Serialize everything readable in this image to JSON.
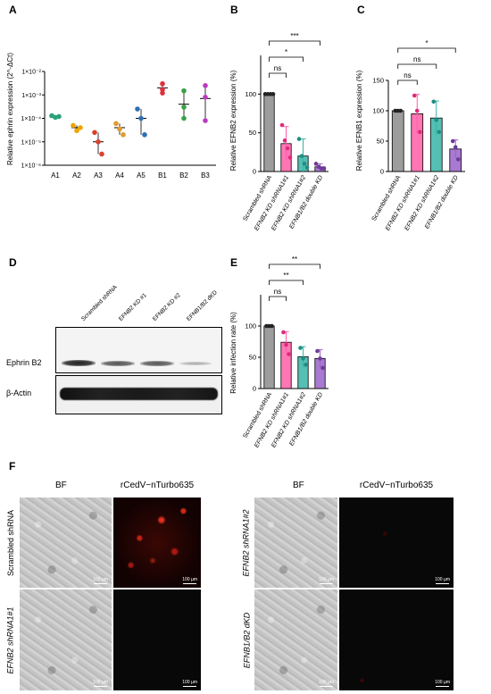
{
  "panels": {
    "A": {
      "letter": "A",
      "ylabel": "Relative ephrin expression (2^-ΔCt)",
      "yticks": [
        "1×10⁻²",
        "1×10⁻³",
        "1×10⁻⁴",
        "1×10⁻⁵",
        "1×10⁻⁶"
      ],
      "xticks": [
        "A1",
        "A2",
        "A3",
        "A4",
        "A5",
        "B1",
        "B2",
        "B3"
      ]
    },
    "B": {
      "letter": "B",
      "ylabel": "Relative EFNB2 expression (%)",
      "yticks": [
        "0",
        "50",
        "100"
      ],
      "categories": [
        "Scrambled shRNA",
        "EFNB2 KD shRNA1#1",
        "EFNB2 KD shRNA1#2",
        "EFNB1/B2 double KD"
      ],
      "sig": [
        "ns",
        "*",
        "***"
      ]
    },
    "C": {
      "letter": "C",
      "ylabel": "Relative EFNB1 expression (%)",
      "yticks": [
        "0",
        "50",
        "100",
        "150"
      ],
      "categories": [
        "Scrambled shRNA",
        "EFNB2 KD shRNA1#1",
        "EFNB2 KD shRNA1#2",
        "EFNB1/B2 double KD"
      ],
      "sig": [
        "ns",
        "ns",
        "*"
      ]
    },
    "D": {
      "letter": "D",
      "lanes": [
        "Scrambled shRNA",
        "EFNB2 KD #1",
        "EFNB2 KD #2",
        "EFNB1/B2 dKD"
      ],
      "row1": "Ephrin B2",
      "row2": "β-Actin"
    },
    "E": {
      "letter": "E",
      "ylabel": "Relative infection rate (%)",
      "yticks": [
        "0",
        "50",
        "100"
      ],
      "categories": [
        "Scrambled shRNA",
        "EFNB2 KD shRNA1#1",
        "EFNB2 KD shRNA1#2",
        "EFNB1/B2 double KD"
      ],
      "sig": [
        "ns",
        "**",
        "**"
      ]
    },
    "F": {
      "letter": "F",
      "col_bf": "BF",
      "col_fl": "rCedV−nTurbo635",
      "rows": [
        "Scrambled shRNA",
        "EFNB2 shRNA1#1",
        "EFNB2 shRNA1#2",
        "EFNB1/B2 dKD"
      ],
      "scale": "100 µm"
    }
  },
  "colors": {
    "grey": "#8c8c8c",
    "pink": "#ff5ea8",
    "teal": "#37b4a6",
    "purple": "#9a63c9",
    "A": [
      "#2aa37a",
      "#f0a400",
      "#d9412b",
      "#e09a2d",
      "#2f6fb4",
      "#e0303a",
      "#3aa04a",
      "#b93bbf"
    ]
  },
  "chart_data": [
    {
      "panel": "A",
      "type": "scatter",
      "ylabel": "Relative ephrin expression (2^-ΔCt)",
      "categories": [
        "A1",
        "A2",
        "A3",
        "A4",
        "A5",
        "B1",
        "B2",
        "B3"
      ],
      "log_scale": true,
      "ylim": [
        1e-06,
        0.01
      ],
      "means": [
        0.00011,
        4e-05,
        1e-05,
        4e-05,
        0.0001,
        0.002,
        0.0004,
        0.0007
      ],
      "points": [
        [
          0.00013,
          0.00011,
          0.00012
        ],
        [
          5e-05,
          3e-05,
          4e-05
        ],
        [
          2.5e-05,
          1e-05,
          3e-06
        ],
        [
          6e-05,
          3.5e-05,
          2e-05
        ],
        [
          0.00025,
          0.0001,
          2e-05
        ],
        [
          0.003,
          0.0017,
          0.0012
        ],
        [
          0.0015,
          0.0003,
          0.0001
        ],
        [
          0.0025,
          0.0008,
          8e-05
        ]
      ]
    },
    {
      "panel": "B",
      "type": "bar",
      "ylabel": "Relative EFNB2 expression (%)",
      "ylim": [
        0,
        150
      ],
      "categories": [
        "Scrambled shRNA",
        "EFNB2 KD shRNA1#1",
        "EFNB2 KD shRNA1#2",
        "EFNB1/B2 double KD"
      ],
      "values": [
        100,
        36,
        20,
        6
      ],
      "errors": [
        0,
        22,
        22,
        4
      ],
      "points": [
        [
          100,
          100,
          100,
          100
        ],
        [
          60,
          40,
          30,
          18
        ],
        [
          42,
          20,
          10,
          5
        ],
        [
          10,
          6,
          4,
          4
        ]
      ]
    },
    {
      "panel": "C",
      "type": "bar",
      "ylabel": "Relative EFNB1 expression (%)",
      "ylim": [
        0,
        150
      ],
      "categories": [
        "Scrambled shRNA",
        "EFNB2 KD shRNA1#1",
        "EFNB2 KD shRNA1#2",
        "EFNB1/B2 double KD"
      ],
      "values": [
        100,
        95,
        88,
        37
      ],
      "errors": [
        0,
        32,
        28,
        15
      ],
      "points": [
        [
          100,
          100,
          100
        ],
        [
          125,
          100,
          65
        ],
        [
          115,
          85,
          65
        ],
        [
          50,
          40,
          20
        ]
      ]
    },
    {
      "panel": "E",
      "type": "bar",
      "ylabel": "Relative infection rate (%)",
      "ylim": [
        0,
        150
      ],
      "categories": [
        "Scrambled shRNA",
        "EFNB2 KD shRNA1#1",
        "EFNB2 KD shRNA1#2",
        "EFNB1/B2 double KD"
      ],
      "values": [
        100,
        74,
        51,
        48
      ],
      "errors": [
        0,
        17,
        16,
        14
      ],
      "points": [
        [
          100,
          100,
          100
        ],
        [
          90,
          70,
          55
        ],
        [
          65,
          48,
          38
        ],
        [
          60,
          48,
          33
        ]
      ]
    }
  ]
}
